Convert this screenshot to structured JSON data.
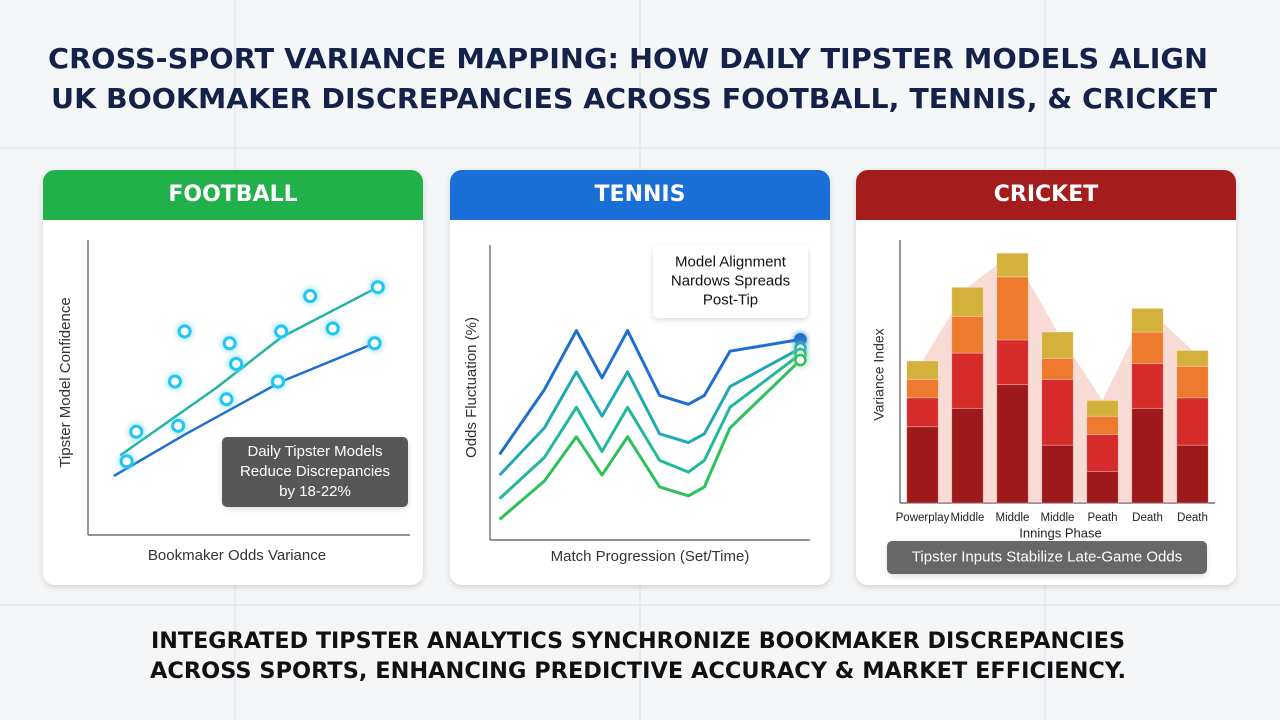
{
  "title_lines": [
    "CROSS-SPORT VARIANCE MAPPING: HOW DAILY TIPSTER MODELS ALIGN",
    "UK BOOKMAKER DISCREPANCIES ACROSS FOOTBALL, TENNIS, & CRICKET"
  ],
  "footer_lines": [
    "INTEGRATED TIPSTER ANALYTICS SYNCHRONIZE BOOKMAKER DISCREPANCIES",
    "ACROSS SPORTS, ENHANCING PREDICTIVE ACCURACY & MARKET EFFICIENCY."
  ],
  "chart_data": [
    {
      "type": "scatter",
      "title": "FOOTBALL",
      "header_color": "#22b04b",
      "xlabel": "Bookmaker Odds Variance",
      "ylabel": "Tipster Model Confidence",
      "xlim": [
        0,
        100
      ],
      "ylim": [
        0,
        100
      ],
      "series": [
        {
          "color": "#1ec8f0",
          "x": [
            12,
            15,
            28,
            43,
            60,
            89,
            90,
            69,
            76,
            46,
            59,
            30,
            44,
            27
          ],
          "values": [
            25,
            35,
            37,
            46,
            69,
            65,
            84,
            81,
            70,
            58,
            52,
            69,
            65,
            52
          ]
        }
      ],
      "trend_lines": [
        {
          "color": "#22b3a6",
          "x": [
            10,
            40,
            60,
            90
          ],
          "values": [
            27,
            50,
            67,
            84
          ]
        },
        {
          "color": "#1f6fd0",
          "x": [
            8,
            30,
            60,
            89
          ],
          "values": [
            20,
            34,
            52,
            65
          ]
        }
      ],
      "annotation": [
        "Daily Tipster Models",
        "Reduce Discrepancies",
        "by 18-22%"
      ]
    },
    {
      "type": "line",
      "title": "TENNIS",
      "header_color": "#1a6fd6",
      "xlabel": "Match Progression (Set/Time)",
      "ylabel": "Odds Fluctuation (%)",
      "xlim": [
        0,
        100
      ],
      "ylim": [
        0,
        100
      ],
      "x": [
        3,
        17,
        27,
        35,
        43,
        53,
        62,
        67,
        75,
        97
      ],
      "series": [
        {
          "color": "#1f6fd0",
          "values": [
            29,
            51,
            71,
            55,
            71,
            49,
            46,
            49,
            64,
            68
          ]
        },
        {
          "color": "#1fa9b5",
          "values": [
            22,
            38,
            57,
            42,
            57,
            36,
            33,
            36,
            52,
            65
          ]
        },
        {
          "color": "#22b89a",
          "values": [
            14,
            28,
            45,
            30,
            45,
            27,
            23,
            27,
            45,
            63
          ]
        },
        {
          "color": "#2ec05a",
          "values": [
            7,
            20,
            35,
            22,
            35,
            18,
            15,
            18,
            38,
            61
          ]
        }
      ],
      "annotation": [
        "Model Alignment",
        "Nardows Spreads",
        "Post-Tip"
      ]
    },
    {
      "type": "bar",
      "title": "CRICKET",
      "header_color": "#a51c1c",
      "xlabel": "Innings Phase",
      "ylabel": "Variance Index",
      "ylim": [
        0,
        100
      ],
      "categories": [
        "Powerplay",
        "Middle",
        "Middle",
        "Middle",
        "Peath",
        "Death",
        "Death"
      ],
      "series": [
        {
          "color": "#9e1a1a",
          "values": [
            29,
            36,
            45,
            22,
            12,
            36,
            22
          ]
        },
        {
          "color": "#d62b2b",
          "values": [
            11,
            21,
            17,
            25,
            14,
            17,
            18
          ]
        },
        {
          "color": "#ee7a2e",
          "values": [
            7,
            14,
            24,
            8,
            7,
            12,
            12
          ]
        },
        {
          "color": "#d4b03c",
          "values": [
            7,
            11,
            9,
            10,
            6,
            9,
            6
          ]
        }
      ],
      "annotation": [
        "Tipster Inputs Stabilize Late-Game Odds"
      ]
    }
  ]
}
